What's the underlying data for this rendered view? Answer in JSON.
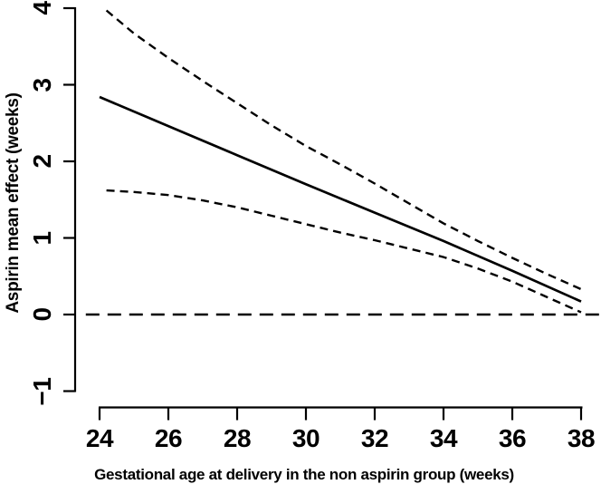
{
  "figure": {
    "background": "#ffffff",
    "line_color": "#000000"
  },
  "chart_data": {
    "type": "line",
    "title": "",
    "xlabel": "Gestational age at delivery in the non aspirin group (weeks)",
    "ylabel": "Aspirin mean effect (weeks)",
    "xlim": [
      24,
      38
    ],
    "ylim": [
      -1,
      4
    ],
    "xticks": [
      24,
      26,
      28,
      30,
      32,
      34,
      36,
      38
    ],
    "yticks": [
      -1,
      0,
      1,
      2,
      3,
      4
    ],
    "grid": false,
    "legend": "none",
    "series": [
      {
        "id": "zero-reference-line",
        "name": "Zero reference line",
        "style": "longdash",
        "x": [
          23.6,
          38.6
        ],
        "y": [
          0,
          0
        ]
      },
      {
        "id": "upper-ci-line",
        "name": "Upper 95% confidence limit",
        "style": "dashed",
        "x": [
          24.2,
          25,
          26,
          27,
          28,
          29,
          30,
          31,
          32,
          33,
          34,
          35,
          36,
          37,
          38
        ],
        "y": [
          3.97,
          3.67,
          3.35,
          3.05,
          2.76,
          2.47,
          2.2,
          1.96,
          1.71,
          1.45,
          1.19,
          0.96,
          0.74,
          0.53,
          0.33
        ]
      },
      {
        "id": "lower-ci-line",
        "name": "Lower 95% confidence limit",
        "style": "dashed",
        "x": [
          24.2,
          25,
          26,
          27,
          28,
          29,
          30,
          31,
          32,
          33,
          34,
          35,
          36,
          37,
          38
        ],
        "y": [
          1.62,
          1.6,
          1.56,
          1.49,
          1.4,
          1.29,
          1.18,
          1.07,
          0.97,
          0.86,
          0.75,
          0.6,
          0.43,
          0.23,
          0.03
        ]
      },
      {
        "id": "mean-effect-line",
        "name": "Aspirin mean effect",
        "style": "solid",
        "x": [
          24,
          26,
          28,
          30,
          32,
          34,
          36,
          38
        ],
        "y": [
          2.84,
          2.46,
          2.08,
          1.7,
          1.33,
          0.96,
          0.57,
          0.17
        ]
      }
    ]
  }
}
